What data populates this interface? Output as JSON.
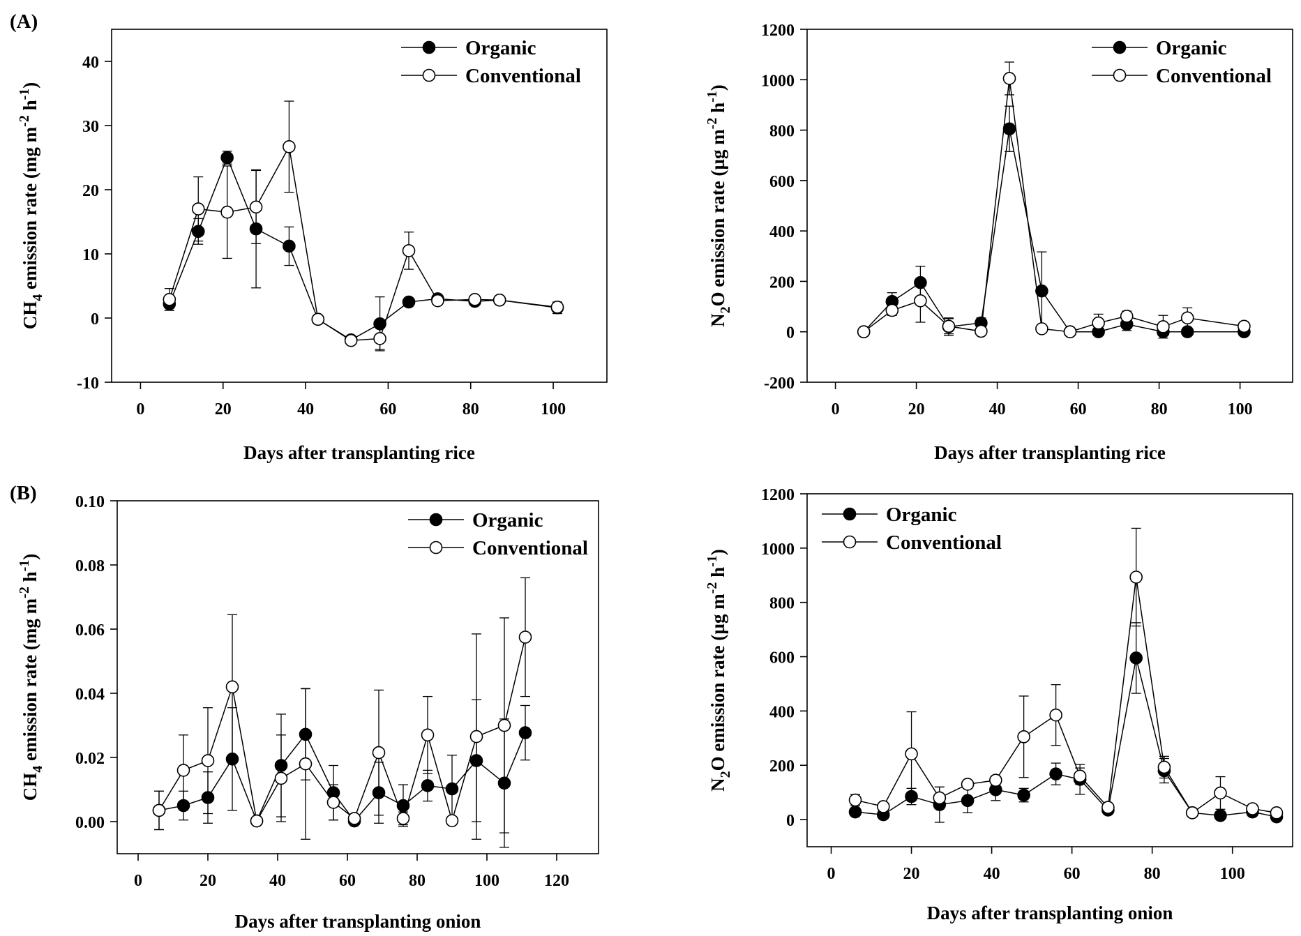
{
  "chart_data": [
    {
      "type": "line",
      "panel_label": "(A)",
      "xlabel": "Days after transplanting rice",
      "ylabel_parts": [
        "CH",
        "4",
        " emission rate (mg m",
        "-2",
        " h",
        "-1",
        ")"
      ],
      "xlim": [
        -7,
        113
      ],
      "ylim": [
        -10,
        45
      ],
      "xticks": [
        0,
        20,
        40,
        60,
        80,
        100
      ],
      "yticks": [
        -10,
        0,
        10,
        20,
        30,
        40
      ],
      "ytick_decimals": 0,
      "legend": [
        "Organic",
        "Conventional"
      ],
      "legend_position": "top-right",
      "series": [
        {
          "name": "Organic",
          "marker": "filled",
          "x": [
            7,
            14,
            21,
            28,
            36,
            43,
            51,
            58,
            65,
            72,
            81,
            87,
            101
          ],
          "y": [
            2.2,
            13.5,
            25.0,
            13.9,
            11.2,
            -0.2,
            -3.4,
            -0.9,
            2.5,
            3.0,
            2.6,
            2.8,
            1.6
          ],
          "err": [
            1.0,
            2.0,
            1.0,
            9.2,
            3.0,
            0.3,
            0.3,
            4.2,
            0.3,
            0.3,
            0.2,
            0.2,
            0.9
          ]
        },
        {
          "name": "Conventional",
          "marker": "open",
          "x": [
            7,
            14,
            21,
            28,
            36,
            43,
            51,
            58,
            65,
            72,
            81,
            87,
            101
          ],
          "y": [
            2.9,
            17.0,
            16.5,
            17.3,
            26.7,
            -0.2,
            -3.5,
            -3.2,
            10.5,
            2.7,
            2.9,
            2.8,
            1.7
          ],
          "err": [
            1.7,
            5.0,
            7.2,
            5.7,
            7.1,
            0.3,
            0.3,
            1.7,
            2.9,
            0.3,
            0.2,
            0.2,
            0.3
          ]
        }
      ]
    },
    {
      "type": "line",
      "panel_label": "",
      "xlabel": "Days after transplanting rice",
      "ylabel_parts": [
        "N",
        "2",
        "O emission rate (µg m",
        "-2",
        " h",
        "-1",
        ")"
      ],
      "xlim": [
        -7,
        113
      ],
      "ylim": [
        -200,
        1200
      ],
      "xticks": [
        0,
        20,
        40,
        60,
        80,
        100
      ],
      "yticks": [
        -200,
        0,
        200,
        400,
        600,
        800,
        1000,
        1200
      ],
      "ytick_decimals": 0,
      "legend": [
        "Organic",
        "Conventional"
      ],
      "legend_position": "top-right",
      "series": [
        {
          "name": "Organic",
          "marker": "filled",
          "x": [
            7,
            14,
            21,
            28,
            36,
            43,
            51,
            58,
            65,
            72,
            81,
            87,
            101
          ],
          "y": [
            0,
            120,
            195,
            20,
            35,
            805,
            162,
            0,
            0,
            30,
            0,
            0,
            0
          ],
          "err": [
            3,
            35,
            65,
            35,
            20,
            90,
            155,
            3,
            3,
            25,
            3,
            3,
            3
          ]
        },
        {
          "name": "Conventional",
          "marker": "open",
          "x": [
            7,
            14,
            21,
            28,
            36,
            43,
            51,
            58,
            65,
            72,
            81,
            87,
            101
          ],
          "y": [
            0,
            85,
            123,
            22,
            2,
            1005,
            12,
            0,
            35,
            62,
            20,
            55,
            22
          ],
          "err": [
            3,
            20,
            85,
            30,
            3,
            65,
            10,
            3,
            35,
            20,
            45,
            40,
            10
          ]
        }
      ]
    },
    {
      "type": "line",
      "panel_label": "(B)",
      "xlabel": "Days after transplanting onion",
      "ylabel_parts": [
        "CH",
        "4",
        " emission rate (mg m",
        "-2",
        " h",
        "-1",
        ")"
      ],
      "xlim": [
        -6,
        132
      ],
      "ylim": [
        -0.01,
        0.1
      ],
      "xticks": [
        0,
        20,
        40,
        60,
        80,
        100,
        120
      ],
      "yticks": [
        0.0,
        0.02,
        0.04,
        0.06,
        0.08,
        0.1
      ],
      "ytick_decimals": 2,
      "legend": [
        "Organic",
        "Conventional"
      ],
      "legend_position": "top-right",
      "series": [
        {
          "name": "Organic",
          "marker": "filled",
          "x": [
            6,
            13,
            20,
            27,
            34,
            41,
            48,
            56,
            62,
            69,
            76,
            83,
            90,
            97,
            105,
            111
          ],
          "y": [
            0.0035,
            0.005,
            0.0075,
            0.0195,
            0.0002,
            0.0175,
            0.0272,
            0.009,
            0.0002,
            0.009,
            0.005,
            0.0112,
            0.0102,
            0.019,
            0.012,
            0.0277
          ],
          "err": [
            0.006,
            0.0045,
            0.008,
            0.016,
            0.0005,
            0.016,
            0.0142,
            0.0085,
            0.0008,
            0.0095,
            0.0065,
            0.0048,
            0.0105,
            0.019,
            0.02,
            0.0085
          ]
        },
        {
          "name": "Conventional",
          "marker": "open",
          "x": [
            6,
            13,
            20,
            27,
            34,
            41,
            48,
            56,
            62,
            69,
            76,
            83,
            90,
            97,
            105,
            111
          ],
          "y": [
            0.0035,
            0.016,
            0.019,
            0.042,
            0.0002,
            0.0135,
            0.018,
            0.006,
            0.001,
            0.0215,
            0.001,
            0.027,
            0.0003,
            0.0265,
            0.03,
            0.0575
          ],
          "err": [
            0.006,
            0.011,
            0.0165,
            0.0225,
            0.0005,
            0.0135,
            0.0235,
            0.0055,
            0.0008,
            0.0195,
            0.002,
            0.012,
            0.0006,
            0.032,
            0.0335,
            0.0185
          ]
        }
      ]
    },
    {
      "type": "line",
      "panel_label": "",
      "xlabel": "Days after transplanting onion",
      "ylabel_parts": [
        "N",
        "2",
        "O emission rate (µg m",
        "-2",
        " h",
        "-1",
        ")"
      ],
      "xlim": [
        -6,
        115
      ],
      "ylim": [
        -100,
        1200
      ],
      "xticks": [
        0,
        20,
        40,
        60,
        80,
        100
      ],
      "yticks": [
        0,
        200,
        400,
        600,
        800,
        1000,
        1200
      ],
      "ytick_decimals": 0,
      "legend": [
        "Organic",
        "Conventional"
      ],
      "legend_position": "top-left",
      "series": [
        {
          "name": "Organic",
          "marker": "filled",
          "x": [
            6,
            13,
            20,
            27,
            34,
            41,
            48,
            56,
            62,
            69,
            76,
            83,
            90,
            97,
            105,
            111
          ],
          "y": [
            28,
            18,
            85,
            55,
            70,
            110,
            90,
            168,
            148,
            35,
            595,
            180,
            25,
            15,
            28,
            10
          ],
          "err": [
            8,
            8,
            30,
            65,
            45,
            40,
            25,
            40,
            55,
            8,
            130,
            45,
            8,
            8,
            15,
            5
          ]
        },
        {
          "name": "Conventional",
          "marker": "open",
          "x": [
            6,
            13,
            20,
            27,
            34,
            41,
            48,
            56,
            62,
            69,
            76,
            83,
            90,
            97,
            105,
            111
          ],
          "y": [
            72,
            48,
            242,
            80,
            130,
            145,
            305,
            385,
            160,
            45,
            893,
            193,
            25,
            98,
            40,
            25
          ],
          "err": [
            20,
            10,
            155,
            40,
            15,
            15,
            150,
            112,
            30,
            8,
            180,
            40,
            8,
            60,
            8,
            5
          ]
        }
      ]
    }
  ]
}
